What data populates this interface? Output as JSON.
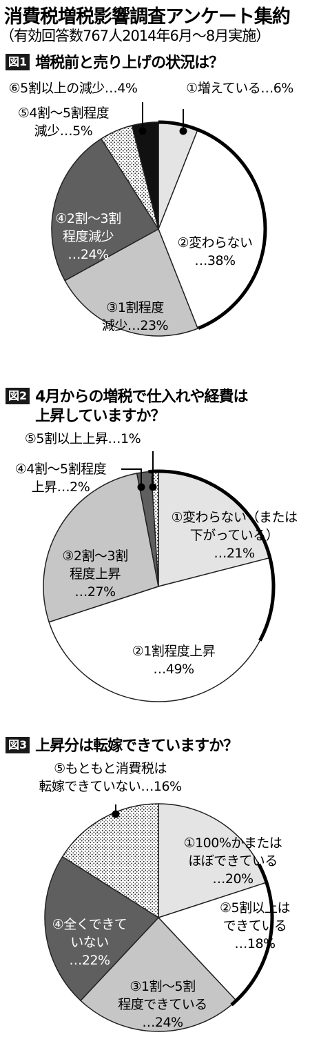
{
  "header": {
    "title": "消費税増税影響調査アンケート集約",
    "subtitle": "（有効回答数767人2014年6月～8月実施）"
  },
  "chart_data": [
    {
      "type": "pie",
      "badge": "図1",
      "question": "増税前と売り上げの状況は？",
      "categories": [
        "①増えている…6%",
        "②変わらない…38%",
        "③1割程度減少…23%",
        "④2割～3割程度減少…24%",
        "⑤4割～5割程度減少…5%",
        "⑥5割以上の減少…4%"
      ],
      "values": [
        6,
        38,
        23,
        24,
        5,
        4
      ],
      "label_lines": [
        [
          "①増えている…6%"
        ],
        [
          "②変わらない",
          "…38%"
        ],
        [
          "③1割程度",
          "減少…23%"
        ],
        [
          "④2割～3割",
          "程度減少",
          "…24%"
        ],
        [
          "⑤4割～5割程度",
          "減少…5%"
        ],
        [
          "⑥5割以上の減少…4%"
        ]
      ]
    },
    {
      "type": "pie",
      "badge": "図2",
      "question": [
        "4月からの増税で仕入れや経費は",
        "上昇していますか？"
      ],
      "categories": [
        "①変わらない（または下がっている）…21%",
        "②1割程度上昇…49%",
        "③2割～3割程度上昇…27%",
        "④4割～5割程度上昇…2%",
        "⑤5割以上上昇…1%"
      ],
      "values": [
        21,
        49,
        27,
        2,
        1
      ],
      "label_lines": [
        [
          "①変わらない（または",
          "下がっている）",
          "…21%"
        ],
        [
          "②1割程度上昇",
          "…49%"
        ],
        [
          "③2割～3割",
          "程度上昇",
          "…27%"
        ],
        [
          "④4割～5割程度",
          "上昇…2%"
        ],
        [
          "⑤5割以上上昇…1%"
        ]
      ]
    },
    {
      "type": "pie",
      "badge": "図3",
      "question": "上昇分は転嫁できていますか？",
      "categories": [
        "①100%かまたはほぼできている…20%",
        "②5割以上はできている…18%",
        "③1割～5割程度できている…24%",
        "④全くできていない…22%",
        "⑤もともと消費税は転嫁できていない…16%"
      ],
      "values": [
        20,
        18,
        24,
        22,
        16
      ],
      "label_lines": [
        [
          "①100%かまたは",
          "ほぼできている",
          "…20%"
        ],
        [
          "②5割以上は",
          "できている",
          "…18%"
        ],
        [
          "③1割～5割",
          "程度できている",
          "…24%"
        ],
        [
          "④全くできて",
          "いない",
          "…22%"
        ],
        [
          "⑤もともと消費税は",
          "転嫁できていない…16%"
        ]
      ]
    }
  ]
}
